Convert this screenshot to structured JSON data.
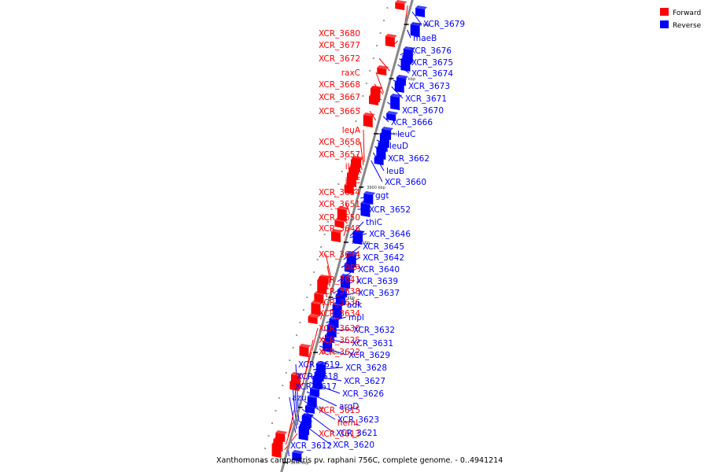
{
  "legend": {
    "forward_label": "Forward",
    "reverse_label": "Reverse",
    "forward_color": "#ff0000",
    "reverse_color": "#0000ff"
  },
  "caption": "Xanthomonas campestris pv. raphani 756C, complete genome. - 0..4941214",
  "colors": {
    "backbone": "#888888",
    "forward": "#ff0000",
    "reverse": "#0000ff"
  },
  "scale_labels": [
    "3930 kbp",
    "3920 kbp",
    "3910 kbp",
    "3900 kbp",
    "3890 kbp",
    "3880 kbp",
    "3870 kbp",
    "3860 kbp",
    "3850 kbp"
  ],
  "genes": [
    {
      "name": "XCR_3680",
      "strand": "forward"
    },
    {
      "name": "XCR_3679",
      "strand": "reverse"
    },
    {
      "name": "XCR_3677",
      "strand": "forward"
    },
    {
      "name": "maeB",
      "strand": "reverse"
    },
    {
      "name": "XCR_3676",
      "strand": "reverse"
    },
    {
      "name": "XCR_3672",
      "strand": "forward"
    },
    {
      "name": "XCR_3675",
      "strand": "reverse"
    },
    {
      "name": "raxC",
      "strand": "forward"
    },
    {
      "name": "XCR_3674",
      "strand": "reverse"
    },
    {
      "name": "XCR_3668",
      "strand": "forward"
    },
    {
      "name": "XCR_3673",
      "strand": "reverse"
    },
    {
      "name": "XCR_3667",
      "strand": "forward"
    },
    {
      "name": "XCR_3671",
      "strand": "reverse"
    },
    {
      "name": "XCR_3665",
      "strand": "forward"
    },
    {
      "name": "XCR_3670",
      "strand": "reverse"
    },
    {
      "name": "XCR_3666",
      "strand": "reverse"
    },
    {
      "name": "leuA",
      "strand": "forward"
    },
    {
      "name": "leuC",
      "strand": "reverse"
    },
    {
      "name": "XCR_3658",
      "strand": "forward"
    },
    {
      "name": "leuD",
      "strand": "reverse"
    },
    {
      "name": "XCR_3657",
      "strand": "forward"
    },
    {
      "name": "XCR_3662",
      "strand": "reverse"
    },
    {
      "name": "ilvB",
      "strand": "forward"
    },
    {
      "name": "leuB",
      "strand": "reverse"
    },
    {
      "name": "ilvC",
      "strand": "forward"
    },
    {
      "name": "XCR_3660",
      "strand": "reverse"
    },
    {
      "name": "XCR_3654",
      "strand": "forward"
    },
    {
      "name": "ggt",
      "strand": "reverse"
    },
    {
      "name": "XCR_3651",
      "strand": "forward"
    },
    {
      "name": "XCR_3652",
      "strand": "reverse"
    },
    {
      "name": "XCR_3650",
      "strand": "forward"
    },
    {
      "name": "thiC",
      "strand": "reverse"
    },
    {
      "name": "XCR_3648",
      "strand": "forward"
    },
    {
      "name": "XCR_3646",
      "strand": "reverse"
    },
    {
      "name": "XCR_3645",
      "strand": "reverse"
    },
    {
      "name": "XCR_3644",
      "strand": "forward"
    },
    {
      "name": "XCR_3642",
      "strand": "reverse"
    },
    {
      "name": "ppa",
      "strand": "forward"
    },
    {
      "name": "XCR_3640",
      "strand": "reverse"
    },
    {
      "name": "XCR_3641",
      "strand": "forward"
    },
    {
      "name": "XCR_3639",
      "strand": "reverse"
    },
    {
      "name": "XCR_3638",
      "strand": "forward"
    },
    {
      "name": "XCR_3637",
      "strand": "reverse"
    },
    {
      "name": "XCR_3636",
      "strand": "forward"
    },
    {
      "name": "adk",
      "strand": "reverse"
    },
    {
      "name": "XCR_3634",
      "strand": "forward"
    },
    {
      "name": "mpl",
      "strand": "reverse"
    },
    {
      "name": "XCR_3630",
      "strand": "forward"
    },
    {
      "name": "XCR_3632",
      "strand": "reverse"
    },
    {
      "name": "XCR_3625",
      "strand": "forward"
    },
    {
      "name": "XCR_3631",
      "strand": "reverse"
    },
    {
      "name": "XCR_3622",
      "strand": "forward"
    },
    {
      "name": "XCR_3629",
      "strand": "reverse"
    },
    {
      "name": "XCR_3619",
      "strand": "reverse"
    },
    {
      "name": "XCR_3628",
      "strand": "reverse"
    },
    {
      "name": "XCR_3618",
      "strand": "reverse"
    },
    {
      "name": "XCR_3627",
      "strand": "reverse"
    },
    {
      "name": "XCR_3617",
      "strand": "reverse"
    },
    {
      "name": "XCR_3626",
      "strand": "reverse"
    },
    {
      "name": "azu",
      "strand": "reverse"
    },
    {
      "name": "argD",
      "strand": "reverse"
    },
    {
      "name": "XCR_3615",
      "strand": "forward"
    },
    {
      "name": "XCR_3623",
      "strand": "reverse"
    },
    {
      "name": "hemL",
      "strand": "forward"
    },
    {
      "name": "XCR_3613",
      "strand": "forward"
    },
    {
      "name": "XCR_3621",
      "strand": "reverse"
    },
    {
      "name": "XCR_3612",
      "strand": "reverse"
    },
    {
      "name": "XCR_3620",
      "strand": "reverse"
    }
  ]
}
